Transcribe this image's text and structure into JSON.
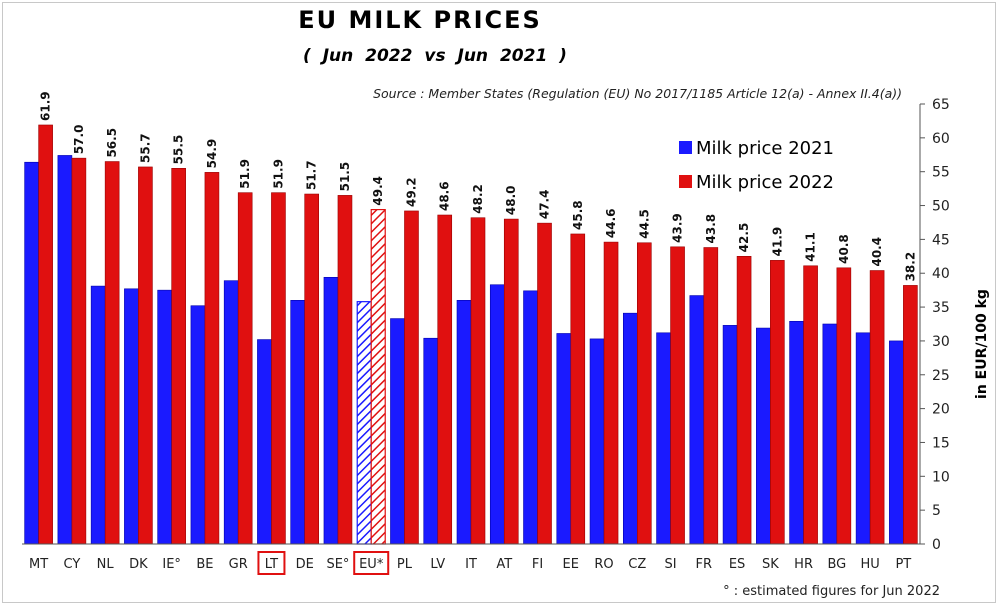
{
  "chart_data": {
    "type": "bar",
    "title": "EU  MILK  PRICES",
    "subtitle": "( Jun 2022   vs   Jun 2021 )",
    "source": "Source : Member States (Regulation (EU) No 2017/1185 Article 12(a) - Annex II.4(a))",
    "ylabel": "in EUR/100 kg",
    "ylim": [
      0,
      65
    ],
    "ytick_step": 5,
    "footnote": "° : estimated figures for Jun 2022",
    "legend_position": "top-right",
    "categories": [
      "MT",
      "CY",
      "NL",
      "DK",
      "IE°",
      "BE",
      "GR",
      "LT",
      "DE",
      "SE°",
      "EU*",
      "PL",
      "LV",
      "IT",
      "AT",
      "FI",
      "EE",
      "RO",
      "CZ",
      "SI",
      "FR",
      "ES",
      "SK",
      "HR",
      "BG",
      "HU",
      "PT"
    ],
    "highlighted_categories": [
      "LT",
      "EU*"
    ],
    "hatched_categories": [
      "EU*"
    ],
    "series": [
      {
        "name": "Milk price 2021",
        "color": "#1a1aff",
        "values": [
          56.4,
          57.4,
          38.1,
          37.7,
          37.5,
          35.2,
          38.9,
          30.2,
          36.0,
          39.4,
          35.8,
          33.3,
          30.4,
          36.0,
          38.3,
          37.4,
          31.1,
          30.3,
          34.1,
          31.2,
          36.7,
          32.3,
          31.9,
          32.9,
          32.5,
          31.2,
          30.0
        ]
      },
      {
        "name": "Milk price 2022",
        "color": "#e01010",
        "values": [
          61.9,
          57.0,
          56.5,
          55.7,
          55.5,
          54.9,
          51.9,
          51.9,
          51.7,
          51.5,
          49.4,
          49.2,
          48.6,
          48.2,
          48.0,
          47.4,
          45.8,
          44.6,
          44.5,
          43.9,
          43.8,
          42.5,
          41.9,
          41.1,
          40.8,
          40.4,
          38.2
        ],
        "value_labels": [
          "61.9",
          "57.0",
          "56.5",
          "55.7",
          "55.5",
          "54.9",
          "51.9",
          "51.9",
          "51.7",
          "51.5",
          "49.4",
          "49.2",
          "48.6",
          "48.2",
          "48.0",
          "47.4",
          "45.8",
          "44.6",
          "44.5",
          "43.9",
          "43.8",
          "42.5",
          "41.9",
          "41.1",
          "40.8",
          "40.4",
          "38.2"
        ]
      }
    ]
  }
}
